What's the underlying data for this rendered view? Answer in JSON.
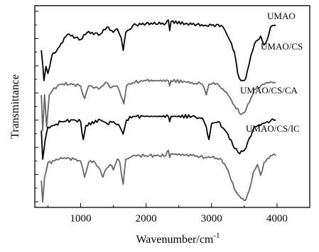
{
  "chart_data": {
    "type": "line",
    "xlabel_base": "Wavenumber/cm",
    "xlabel_sup": "-1",
    "ylabel": "Transmittance",
    "xlim": [
      300,
      4500
    ],
    "x_ticks": [
      1000,
      2000,
      3000,
      4000
    ],
    "x_tick_labels": [
      "1000",
      "2000",
      "3000",
      "4000"
    ],
    "y_scale": "arbitrary units, curves vertically offset, no tick labels",
    "grid": false,
    "series": [
      {
        "name": "UMAO",
        "color": "#000000",
        "offset": 0.87,
        "points": [
          [
            400,
            0.83
          ],
          [
            440,
            0.66
          ],
          [
            470,
            0.74
          ],
          [
            500,
            0.7
          ],
          [
            560,
            0.8
          ],
          [
            650,
            0.84
          ],
          [
            800,
            0.92
          ],
          [
            1000,
            0.89
          ],
          [
            1100,
            0.93
          ],
          [
            1300,
            0.92
          ],
          [
            1400,
            0.96
          ],
          [
            1500,
            0.93
          ],
          [
            1560,
            0.95
          ],
          [
            1620,
            0.9
          ],
          [
            1650,
            0.83
          ],
          [
            1690,
            0.93
          ],
          [
            1800,
            0.97
          ],
          [
            2000,
            0.98
          ],
          [
            2300,
            0.98
          ],
          [
            2340,
            1.0
          ],
          [
            2360,
            0.94
          ],
          [
            2380,
            0.99
          ],
          [
            2600,
            0.98
          ],
          [
            2900,
            0.97
          ],
          [
            3000,
            0.97
          ],
          [
            3150,
            0.97
          ],
          [
            3260,
            0.9
          ],
          [
            3350,
            0.82
          ],
          [
            3400,
            0.7
          ],
          [
            3450,
            0.66
          ],
          [
            3520,
            0.67
          ],
          [
            3600,
            0.8
          ],
          [
            3660,
            0.87
          ],
          [
            3750,
            0.91
          ],
          [
            3800,
            0.86
          ],
          [
            3860,
            0.9
          ],
          [
            3900,
            0.96
          ],
          [
            3980,
            0.97
          ]
        ]
      },
      {
        "name": "UMAO/CS",
        "color": "#666666",
        "offset": 0.65,
        "points": [
          [
            400,
            0.58
          ],
          [
            420,
            0.38
          ],
          [
            450,
            0.58
          ],
          [
            480,
            0.4
          ],
          [
            520,
            0.58
          ],
          [
            600,
            0.62
          ],
          [
            700,
            0.64
          ],
          [
            900,
            0.64
          ],
          [
            1000,
            0.63
          ],
          [
            1060,
            0.56
          ],
          [
            1120,
            0.63
          ],
          [
            1300,
            0.62
          ],
          [
            1400,
            0.65
          ],
          [
            1450,
            0.62
          ],
          [
            1500,
            0.63
          ],
          [
            1560,
            0.63
          ],
          [
            1620,
            0.57
          ],
          [
            1660,
            0.53
          ],
          [
            1700,
            0.63
          ],
          [
            1800,
            0.65
          ],
          [
            2000,
            0.66
          ],
          [
            2340,
            0.66
          ],
          [
            2360,
            0.63
          ],
          [
            2380,
            0.66
          ],
          [
            2700,
            0.65
          ],
          [
            2860,
            0.64
          ],
          [
            2920,
            0.58
          ],
          [
            2960,
            0.64
          ],
          [
            3100,
            0.64
          ],
          [
            3250,
            0.58
          ],
          [
            3350,
            0.52
          ],
          [
            3450,
            0.47
          ],
          [
            3500,
            0.48
          ],
          [
            3580,
            0.54
          ],
          [
            3650,
            0.61
          ],
          [
            3750,
            0.63
          ],
          [
            3850,
            0.65
          ],
          [
            3980,
            0.65
          ]
        ]
      },
      {
        "name": "UMAO/CS/CA",
        "color": "#000000",
        "offset": 0.43,
        "points": [
          [
            400,
            0.38
          ],
          [
            420,
            0.22
          ],
          [
            460,
            0.33
          ],
          [
            500,
            0.4
          ],
          [
            600,
            0.41
          ],
          [
            700,
            0.43
          ],
          [
            900,
            0.44
          ],
          [
            1000,
            0.43
          ],
          [
            1040,
            0.33
          ],
          [
            1080,
            0.41
          ],
          [
            1300,
            0.44
          ],
          [
            1400,
            0.42
          ],
          [
            1500,
            0.43
          ],
          [
            1600,
            0.4
          ],
          [
            1650,
            0.36
          ],
          [
            1700,
            0.44
          ],
          [
            1800,
            0.46
          ],
          [
            2000,
            0.46
          ],
          [
            2340,
            0.46
          ],
          [
            2360,
            0.43
          ],
          [
            2380,
            0.46
          ],
          [
            2700,
            0.46
          ],
          [
            2860,
            0.45
          ],
          [
            2920,
            0.4
          ],
          [
            2960,
            0.33
          ],
          [
            3000,
            0.42
          ],
          [
            3100,
            0.43
          ],
          [
            3250,
            0.36
          ],
          [
            3350,
            0.28
          ],
          [
            3430,
            0.25
          ],
          [
            3500,
            0.27
          ],
          [
            3580,
            0.34
          ],
          [
            3650,
            0.4
          ],
          [
            3750,
            0.41
          ],
          [
            3850,
            0.43
          ],
          [
            3980,
            0.44
          ]
        ]
      },
      {
        "name": "UMAO/CS/IC",
        "color": "#666666",
        "offset": 0.23,
        "points": [
          [
            400,
            0.1
          ],
          [
            420,
            -0.02
          ],
          [
            450,
            0.12
          ],
          [
            500,
            0.2
          ],
          [
            600,
            0.21
          ],
          [
            700,
            0.23
          ],
          [
            900,
            0.22
          ],
          [
            1000,
            0.21
          ],
          [
            1060,
            0.12
          ],
          [
            1120,
            0.2
          ],
          [
            1200,
            0.21
          ],
          [
            1300,
            0.16
          ],
          [
            1340,
            0.12
          ],
          [
            1400,
            0.17
          ],
          [
            1450,
            0.19
          ],
          [
            1500,
            0.16
          ],
          [
            1560,
            0.22
          ],
          [
            1600,
            0.2
          ],
          [
            1650,
            0.08
          ],
          [
            1690,
            0.22
          ],
          [
            1800,
            0.24
          ],
          [
            2000,
            0.24
          ],
          [
            2300,
            0.24
          ],
          [
            2340,
            0.27
          ],
          [
            2360,
            0.23
          ],
          [
            2380,
            0.25
          ],
          [
            2700,
            0.24
          ],
          [
            2900,
            0.23
          ],
          [
            3000,
            0.23
          ],
          [
            3150,
            0.22
          ],
          [
            3250,
            0.16
          ],
          [
            3350,
            0.05
          ],
          [
            3450,
            0.0
          ],
          [
            3520,
            -0.01
          ],
          [
            3580,
            0.05
          ],
          [
            3640,
            0.15
          ],
          [
            3700,
            0.19
          ],
          [
            3750,
            0.13
          ],
          [
            3800,
            0.2
          ],
          [
            3900,
            0.24
          ],
          [
            3980,
            0.24
          ]
        ]
      }
    ],
    "series_label_positions": "right side, above each curve"
  }
}
